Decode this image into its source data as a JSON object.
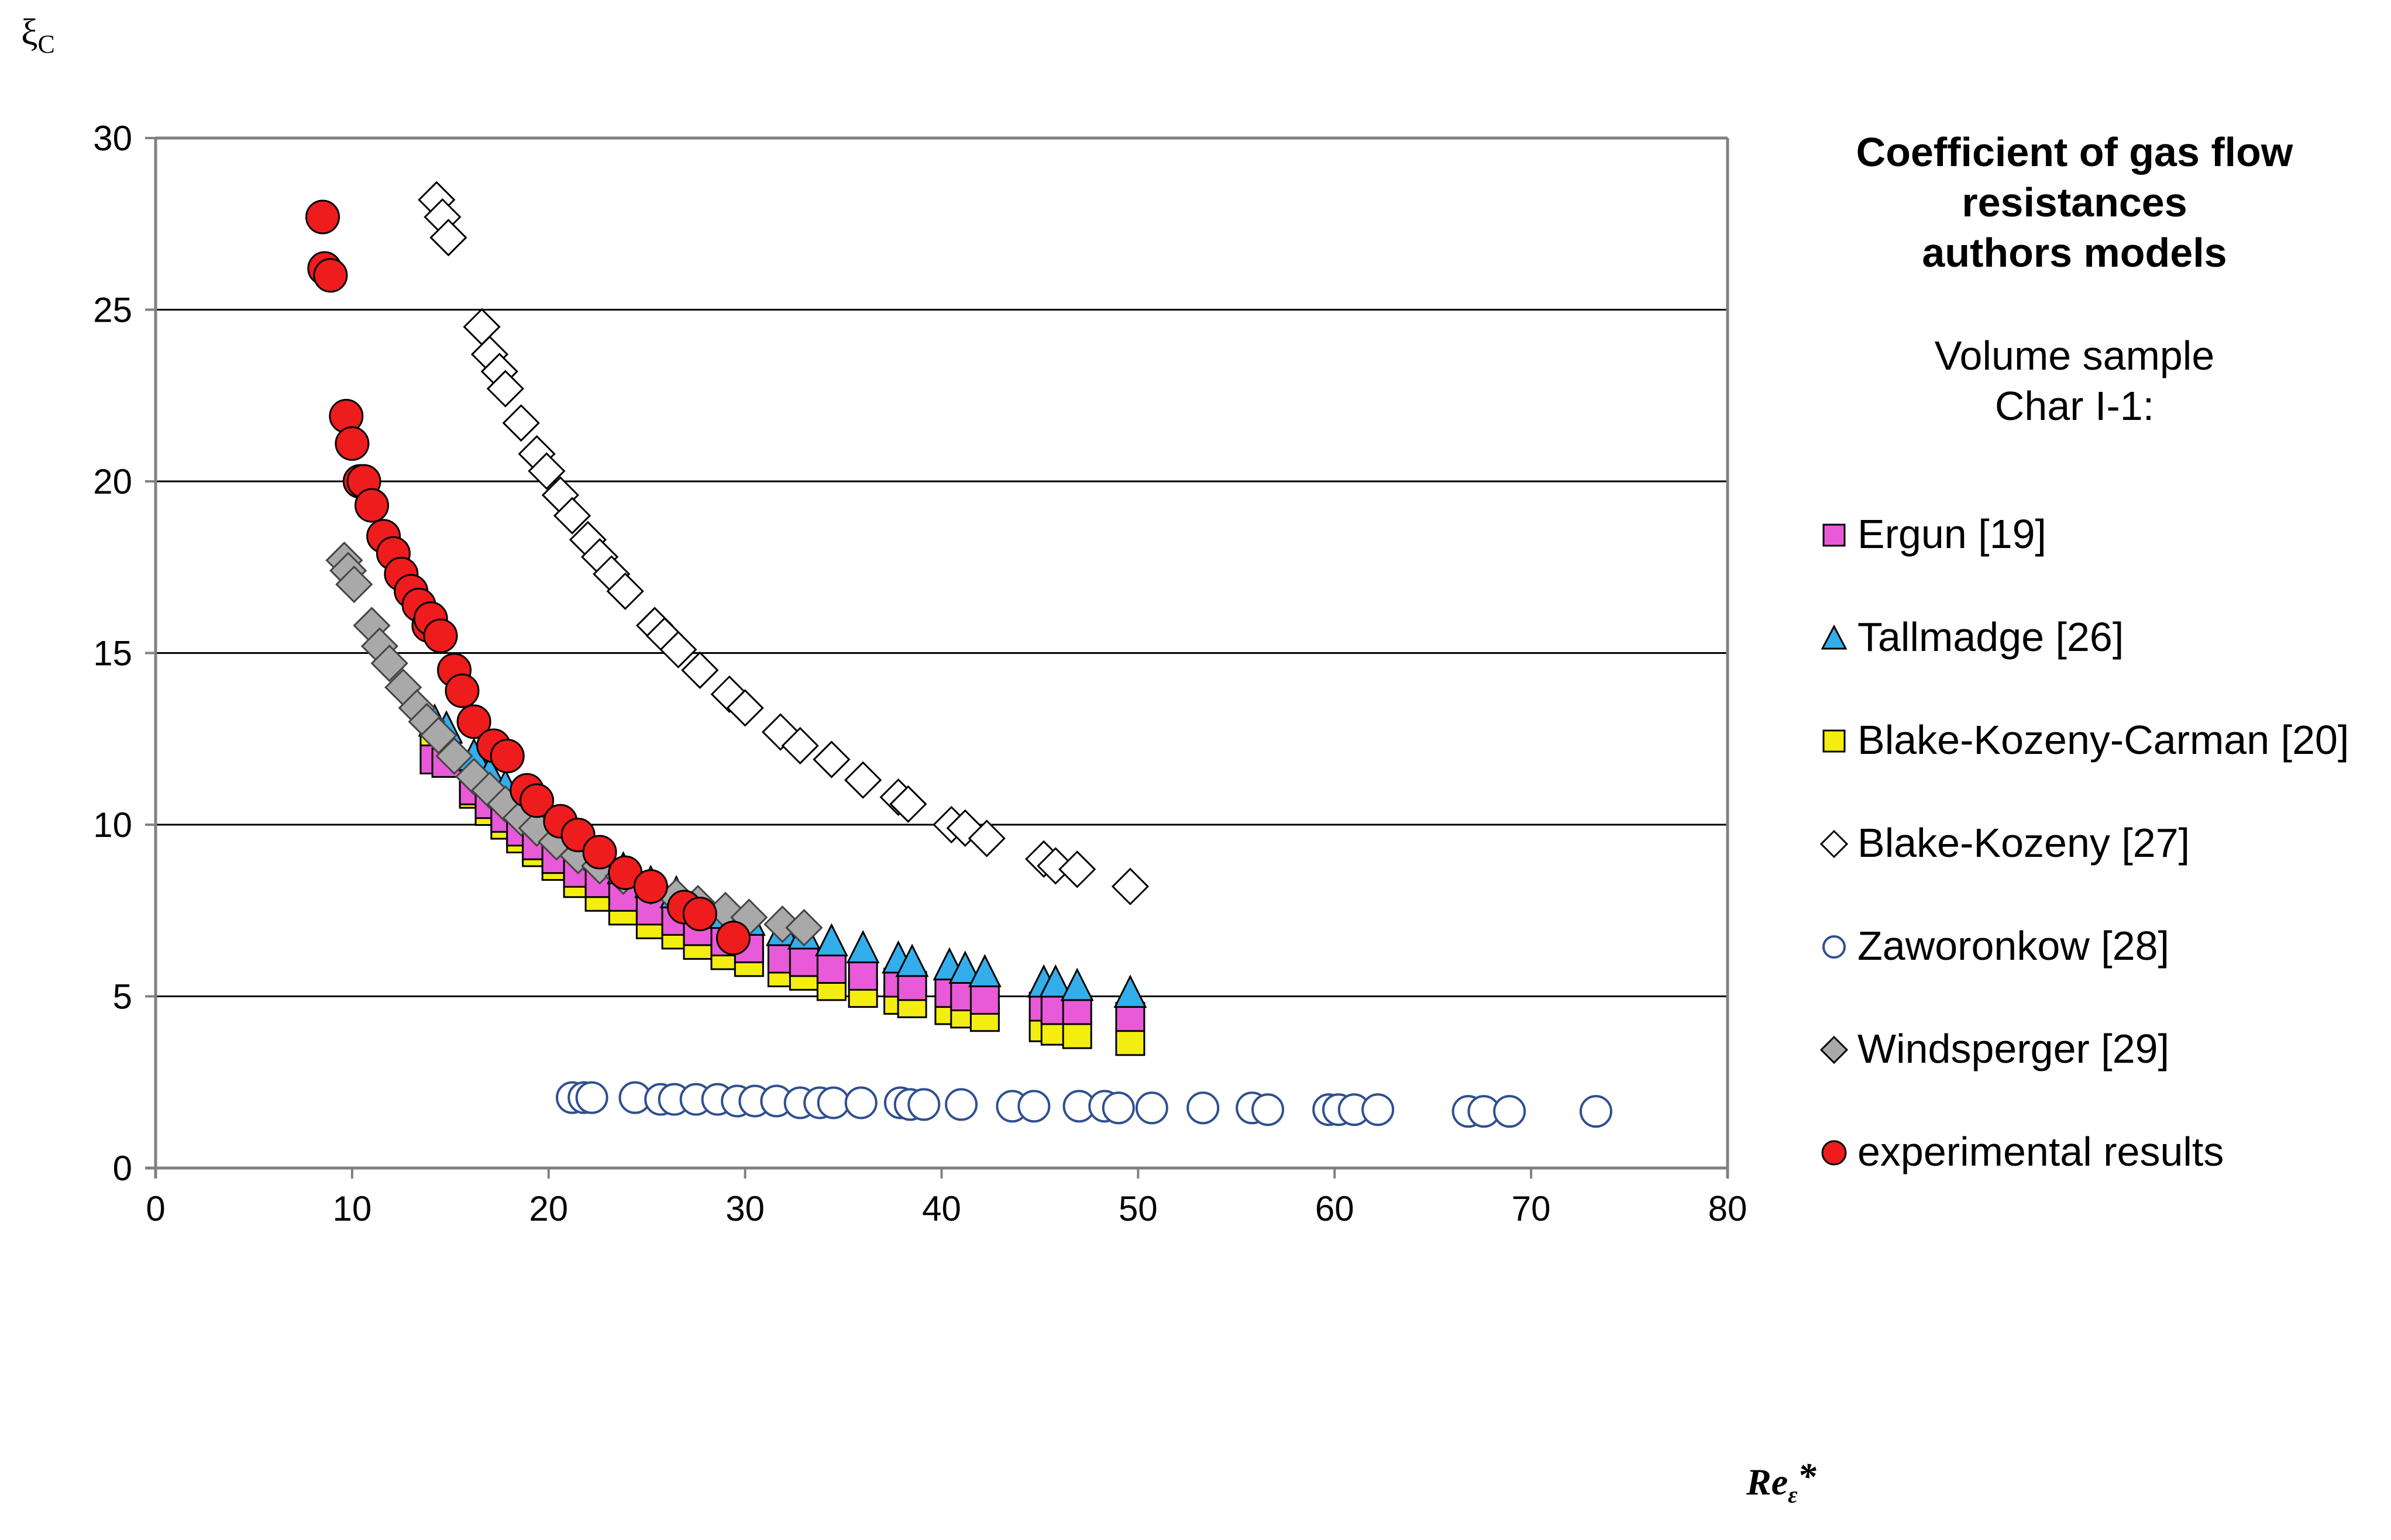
{
  "chart_data": {
    "type": "scatter",
    "title_lines": [
      "Coefficient of gas flow",
      "resistances",
      "authors models"
    ],
    "subtitle_lines": [
      "Volume sample",
      "Char I-1:"
    ],
    "ylabel": "ξ",
    "ylabel_sub": "C",
    "xlabel": "Re",
    "xlabel_sub": "ε",
    "xlabel_suffix": "*",
    "xlim": [
      0,
      80
    ],
    "ylim": [
      0,
      30
    ],
    "xticks": [
      0,
      10,
      20,
      30,
      40,
      50,
      60,
      70,
      80
    ],
    "yticks": [
      0,
      5,
      10,
      15,
      20,
      25,
      30
    ],
    "grid_y": true,
    "legend_position": "right",
    "colors": {
      "ergun_fill": "#e85ad8",
      "tallmadge_fill": "#33aeea",
      "bkc_fill": "#f4ee10",
      "blake_kozeny_fill": "#ffffff",
      "zaworonkow_stroke": "#2f4f8f",
      "windsperger_fill": "#a9a9a9",
      "experimental_fill": "#ee1c1c"
    },
    "series": [
      {
        "name": "Ergun [19]",
        "marker": "square",
        "x": [
          14.2,
          14.8,
          16.2,
          17.0,
          17.8,
          18.6,
          19.4,
          20.4,
          21.5,
          22.6,
          23.8,
          25.2,
          26.5,
          27.6,
          29.0,
          30.2,
          31.9,
          33.0,
          34.4,
          36.0,
          37.8,
          38.5,
          40.4,
          41.2,
          42.2,
          45.2,
          45.8,
          46.9,
          49.6
        ],
        "y": [
          11.9,
          11.8,
          11.0,
          10.6,
          10.2,
          9.8,
          9.4,
          9.0,
          8.6,
          8.3,
          7.9,
          7.5,
          7.2,
          6.9,
          6.6,
          6.4,
          6.1,
          6.0,
          5.8,
          5.6,
          5.4,
          5.3,
          5.1,
          5.0,
          4.9,
          4.7,
          4.6,
          4.6,
          4.4
        ]
      },
      {
        "name": "Tallmadge [26]",
        "marker": "triangle",
        "x": [
          14.2,
          14.8,
          16.2,
          17.0,
          17.8,
          18.6,
          19.4,
          20.4,
          21.5,
          22.6,
          23.8,
          25.2,
          26.5,
          27.6,
          29.0,
          30.2,
          31.9,
          33.0,
          34.4,
          36.0,
          37.8,
          38.5,
          40.4,
          41.2,
          42.2,
          45.2,
          45.8,
          46.9,
          49.6
        ],
        "y": [
          13.0,
          12.8,
          12.0,
          11.5,
          11.1,
          10.7,
          10.3,
          9.9,
          9.5,
          9.1,
          8.7,
          8.3,
          8.0,
          7.7,
          7.4,
          7.2,
          6.9,
          6.8,
          6.6,
          6.4,
          6.1,
          6.0,
          5.9,
          5.8,
          5.7,
          5.4,
          5.4,
          5.3,
          5.1
        ]
      },
      {
        "name": "Blake-Kozeny-Carman [20]",
        "marker": "square",
        "x": [
          14.2,
          14.8,
          16.2,
          17.0,
          17.8,
          18.6,
          19.4,
          20.4,
          21.5,
          22.6,
          23.8,
          25.2,
          26.5,
          27.6,
          29.0,
          30.2,
          31.9,
          33.0,
          34.4,
          36.0,
          37.8,
          38.5,
          40.4,
          41.2,
          42.2,
          45.2,
          45.8,
          46.9,
          49.6
        ],
        "y": [
          12.2,
          12.0,
          10.9,
          10.4,
          10.0,
          9.6,
          9.2,
          8.8,
          8.3,
          7.9,
          7.5,
          7.1,
          6.8,
          6.5,
          6.2,
          6.0,
          5.7,
          5.6,
          5.3,
          5.1,
          4.9,
          4.8,
          4.6,
          4.5,
          4.4,
          4.1,
          4.0,
          3.9,
          3.7
        ]
      },
      {
        "name": "Blake-Kozeny [27]",
        "marker": "diamond",
        "x": [
          14.3,
          14.6,
          14.9,
          16.6,
          17.0,
          17.5,
          17.8,
          18.6,
          19.4,
          19.9,
          20.6,
          21.2,
          22.0,
          22.6,
          23.2,
          23.9,
          25.4,
          25.9,
          26.6,
          27.7,
          29.2,
          30.0,
          31.8,
          32.8,
          34.4,
          36.0,
          37.8,
          38.3,
          40.5,
          41.2,
          42.3,
          45.2,
          45.8,
          46.9,
          49.6
        ],
        "y": [
          28.2,
          27.7,
          27.1,
          24.5,
          23.7,
          23.2,
          22.7,
          21.7,
          20.8,
          20.3,
          19.6,
          19.0,
          18.3,
          17.8,
          17.3,
          16.8,
          15.8,
          15.5,
          15.1,
          14.5,
          13.8,
          13.4,
          12.7,
          12.3,
          11.9,
          11.3,
          10.8,
          10.6,
          10.0,
          9.9,
          9.6,
          9.0,
          8.8,
          8.7,
          8.2
        ]
      },
      {
        "name": "Zaworonkow [28]",
        "marker": "circle-open",
        "x": [
          21.2,
          21.8,
          22.2,
          24.4,
          25.7,
          26.4,
          27.5,
          28.6,
          29.6,
          30.5,
          31.6,
          32.8,
          33.8,
          34.5,
          35.9,
          37.9,
          38.4,
          39.1,
          41.0,
          43.6,
          44.7,
          47.0,
          48.3,
          49.0,
          50.7,
          53.3,
          55.8,
          56.6,
          59.7,
          60.2,
          61.0,
          62.2,
          66.8,
          67.6,
          68.9,
          73.3
        ],
        "y": [
          2.05,
          2.05,
          2.05,
          2.05,
          2.0,
          2.0,
          2.0,
          2.0,
          1.95,
          1.95,
          1.95,
          1.9,
          1.9,
          1.9,
          1.9,
          1.9,
          1.85,
          1.85,
          1.85,
          1.8,
          1.8,
          1.8,
          1.8,
          1.75,
          1.75,
          1.75,
          1.75,
          1.7,
          1.7,
          1.7,
          1.7,
          1.7,
          1.65,
          1.65,
          1.65,
          1.65
        ]
      },
      {
        "name": "Windsperger [29]",
        "marker": "diamond-filled",
        "x": [
          9.6,
          9.8,
          10.1,
          11.0,
          11.4,
          11.9,
          12.6,
          13.3,
          13.8,
          14.4,
          15.2,
          16.2,
          17.0,
          17.8,
          18.6,
          19.4,
          20.4,
          21.5,
          22.6,
          23.8,
          25.2,
          26.5,
          27.6,
          29.0,
          30.2,
          31.9,
          33.0
        ],
        "y": [
          17.7,
          17.4,
          17.0,
          15.8,
          15.2,
          14.7,
          14.0,
          13.4,
          13.0,
          12.6,
          12.0,
          11.4,
          11.0,
          10.6,
          10.2,
          9.9,
          9.5,
          9.1,
          8.8,
          8.5,
          8.2,
          7.9,
          7.7,
          7.5,
          7.3,
          7.1,
          7.0
        ]
      },
      {
        "name": "experimental results",
        "marker": "circle-filled",
        "x": [
          8.5,
          8.6,
          8.9,
          9.7,
          10.0,
          10.4,
          10.6,
          11.0,
          11.6,
          12.1,
          12.5,
          13.0,
          13.4,
          13.9,
          14.0,
          14.5,
          15.2,
          15.6,
          16.2,
          17.2,
          17.9,
          18.9,
          19.4,
          20.6,
          21.5,
          22.6,
          23.9,
          25.2,
          26.9,
          27.7,
          29.4
        ],
        "y": [
          27.7,
          26.2,
          26.0,
          21.9,
          21.1,
          20.0,
          20.0,
          19.3,
          18.4,
          17.9,
          17.3,
          16.8,
          16.4,
          15.8,
          16.0,
          15.5,
          14.5,
          13.9,
          13.0,
          12.3,
          12.0,
          11.0,
          10.7,
          10.1,
          9.7,
          9.2,
          8.6,
          8.2,
          7.6,
          7.4,
          6.7
        ]
      }
    ]
  }
}
